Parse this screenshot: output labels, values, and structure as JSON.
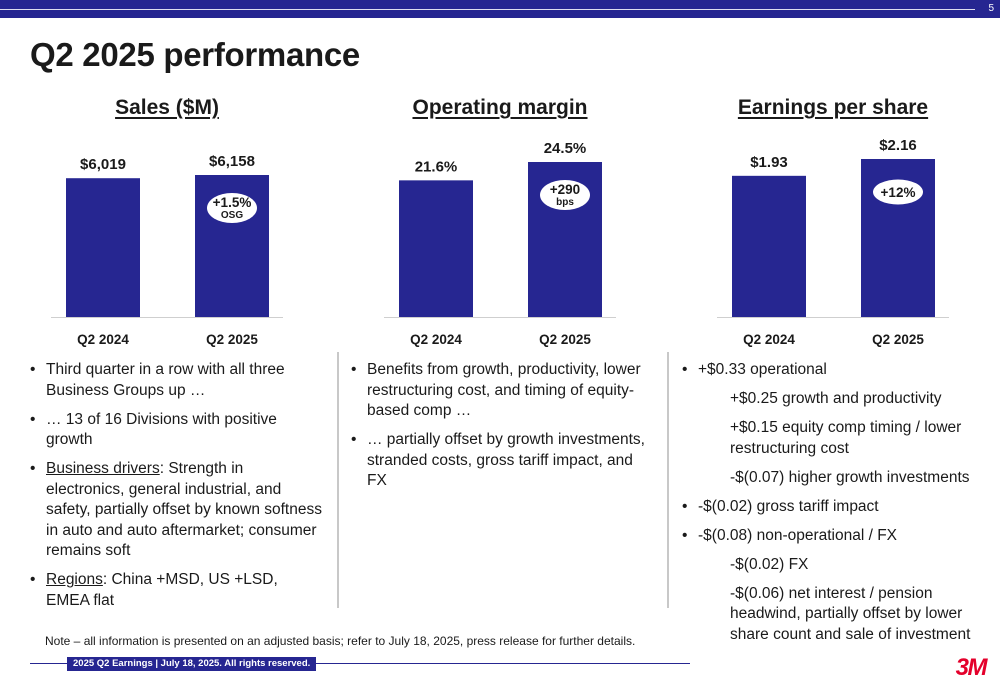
{
  "page_number": "5",
  "title": "Q2 2025 performance",
  "charts": [
    {
      "title": "Sales ($M)",
      "categories": [
        "Q2 2024",
        "Q2 2025"
      ],
      "values": [
        6019,
        6158
      ],
      "value_labels": [
        "$6,019",
        "$6,158"
      ],
      "badge": {
        "main": "+1.5%",
        "sub": "OSG"
      }
    },
    {
      "title": "Operating margin",
      "categories": [
        "Q2 2024",
        "Q2 2025"
      ],
      "values": [
        21.6,
        24.5
      ],
      "value_labels": [
        "21.6%",
        "24.5%"
      ],
      "badge": {
        "main": "+290",
        "sub": "bps"
      }
    },
    {
      "title": "Earnings per share",
      "categories": [
        "Q2 2024",
        "Q2 2025"
      ],
      "values": [
        1.93,
        2.16
      ],
      "value_labels": [
        "$1.93",
        "$2.16"
      ],
      "badge": {
        "main": "+12%",
        "sub": ""
      }
    }
  ],
  "chart_data": [
    {
      "type": "bar",
      "title": "Sales ($M)",
      "categories": [
        "Q2 2024",
        "Q2 2025"
      ],
      "values": [
        6019,
        6158
      ]
    },
    {
      "type": "bar",
      "title": "Operating margin",
      "categories": [
        "Q2 2024",
        "Q2 2025"
      ],
      "values": [
        21.6,
        24.5
      ]
    },
    {
      "type": "bar",
      "title": "Earnings per share",
      "categories": [
        "Q2 2024",
        "Q2 2025"
      ],
      "values": [
        1.93,
        2.16
      ]
    }
  ],
  "bar_color": "#262691",
  "col1": {
    "b1": "Third quarter in a row with all three Business Groups up …",
    "b2": "… 13 of 16 Divisions with positive growth",
    "b3_label": "Business drivers",
    "b3_text": ": Strength in electronics, general industrial, and safety, partially offset by known softness in auto and auto aftermarket; consumer remains soft",
    "b4_label": "Regions",
    "b4_text": ": China +MSD, US +LSD, EMEA flat"
  },
  "col2": {
    "b1": "Benefits from growth, productivity, lower restructuring cost, and timing of equity-based comp …",
    "b2": "… partially offset by growth investments, stranded costs, gross tariff impact, and FX"
  },
  "col3": {
    "b1": "+$0.33 operational",
    "s1": "+$0.25 growth and productivity",
    "s2": "+$0.15 equity comp timing / lower restructuring cost",
    "s3": "-$(0.07) higher growth investments",
    "b2": "-$(0.02) gross tariff impact",
    "b3": "-$(0.08) non-operational / FX",
    "s4": "-$(0.02) FX",
    "s5": "-$(0.06) net interest / pension headwind, partially offset by lower share count and sale of investment"
  },
  "note": "Note – all information is presented on an adjusted basis; refer to July 18, 2025, press release for further details.",
  "footer": "2025 Q2 Earnings | July 18, 2025. All rights reserved.",
  "logo": "3M"
}
